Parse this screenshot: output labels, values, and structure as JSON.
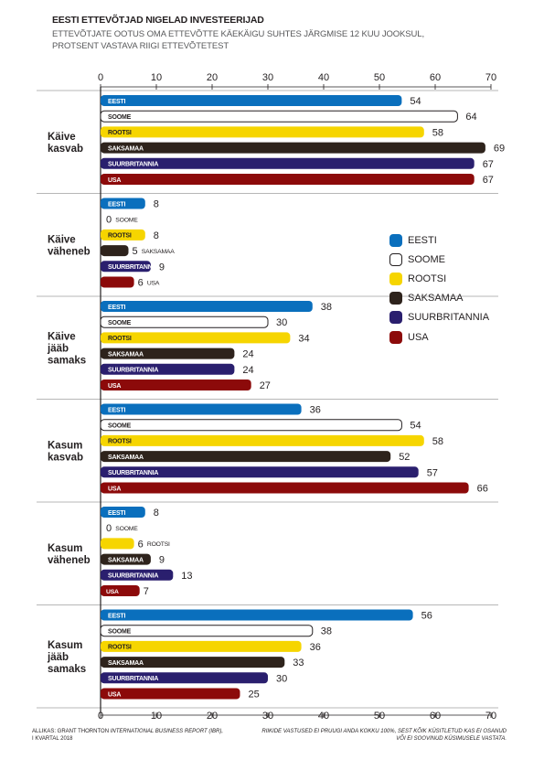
{
  "title": "EESTI ETTEVÕTJAD NIGELAD INVESTEERIJAD",
  "subtitle": "ETTEVÕTJATE OOTUS OMA ETTEVÕTTE KÄEKÄIGU SUHTES JÄRGMISE 12 KUU JOOKSUL, PROTSENT VASTAVA RIIGI ETTEVÕTETEST",
  "footer": {
    "source_prefix": "ALLIKAS: GRANT THORNTON ",
    "source_report": "INTERNATIONAL BUSINESS REPORT (IBR),",
    "source_period": "I KVARTAL 2018",
    "note": "RIIKIDE VASTUSED EI PRUUGI ANDA KOKKU 100%, SEST KÕIK KÜSITLETUD KAS EI OSANUD VÕI EI SOOVINUD KÜSIMUSELE VASTATA."
  },
  "chart_data": {
    "type": "bar",
    "orientation": "horizontal",
    "xlim": [
      0,
      70
    ],
    "xticks": [
      0,
      10,
      20,
      30,
      40,
      50,
      60,
      70
    ],
    "legend_position": "right",
    "series": [
      {
        "name": "EESTI",
        "color": "#0a6fbd",
        "text_color": "#ffffff"
      },
      {
        "name": "SOOME",
        "color": "#ffffff",
        "text_color": "#231f20"
      },
      {
        "name": "ROOTSI",
        "color": "#f6d500",
        "text_color": "#231f20"
      },
      {
        "name": "SAKSAMAA",
        "color": "#2e231c",
        "text_color": "#ffffff"
      },
      {
        "name": "SUURBRITANNIA",
        "color": "#2a1f6e",
        "text_color": "#ffffff"
      },
      {
        "name": "USA",
        "color": "#8c0a0a",
        "text_color": "#ffffff"
      }
    ],
    "groups": [
      {
        "label": [
          "Käive",
          "kasvab"
        ],
        "values": [
          54,
          64,
          58,
          69,
          67,
          67
        ]
      },
      {
        "label": [
          "Käive",
          "väheneb"
        ],
        "values": [
          8,
          0,
          8,
          5,
          9,
          6
        ]
      },
      {
        "label": [
          "Käive",
          "jääb",
          "samaks"
        ],
        "values": [
          38,
          30,
          34,
          24,
          24,
          27
        ]
      },
      {
        "label": [
          "Kasum",
          "kasvab"
        ],
        "values": [
          36,
          54,
          58,
          52,
          57,
          66
        ]
      },
      {
        "label": [
          "Kasum",
          "väheneb"
        ],
        "values": [
          8,
          0,
          6,
          9,
          13,
          7
        ]
      },
      {
        "label": [
          "Kasum",
          "jääb",
          "samaks"
        ],
        "values": [
          56,
          38,
          36,
          33,
          30,
          25
        ]
      }
    ]
  }
}
